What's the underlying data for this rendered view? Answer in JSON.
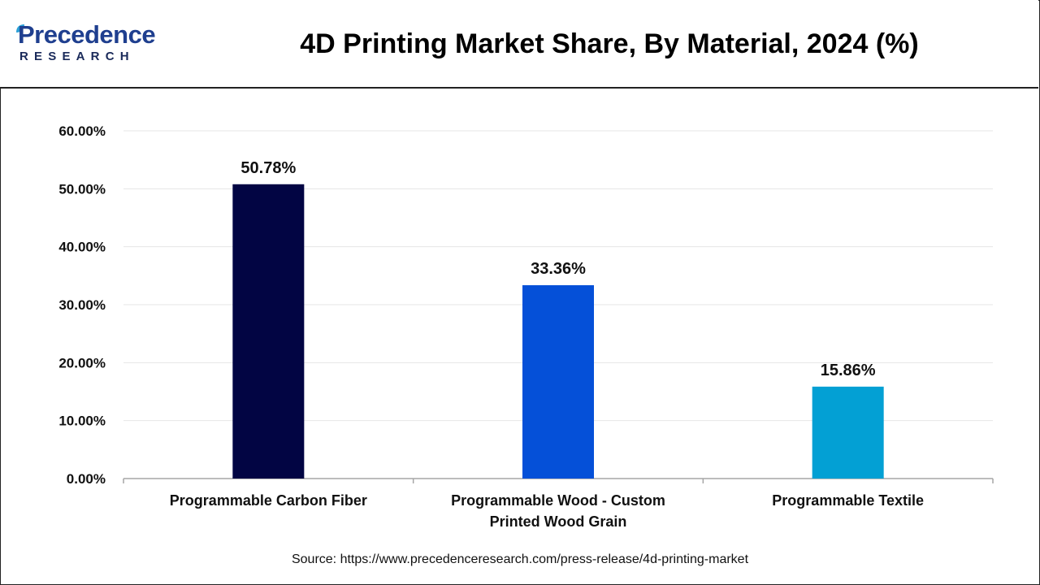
{
  "header": {
    "logo_main": "Precedence",
    "logo_sub": "RESEARCH",
    "title": "4D Printing Market Share, By Material, 2024 (%)"
  },
  "chart_data": {
    "type": "bar",
    "title": "4D Printing Market Share, By Material, 2024 (%)",
    "categories": [
      [
        "Programmable Carbon Fiber"
      ],
      [
        "Programmable Wood - Custom",
        "Printed Wood Grain"
      ],
      [
        "Programmable Textile"
      ]
    ],
    "values": [
      50.78,
      33.36,
      15.86
    ],
    "value_labels": [
      "50.78%",
      "33.36%",
      "15.86%"
    ],
    "colors": [
      "#020543",
      "#0550d8",
      "#03a0d4"
    ],
    "yticks": [
      "0.00%",
      "10.00%",
      "20.00%",
      "30.00%",
      "40.00%",
      "50.00%",
      "60.00%"
    ],
    "ylim": [
      0,
      60
    ],
    "xlabel": "",
    "ylabel": "",
    "grid": true,
    "legend": "none"
  },
  "footer": {
    "source": "Source: https://www.precedenceresearch.com/press-release/4d-printing-market"
  }
}
